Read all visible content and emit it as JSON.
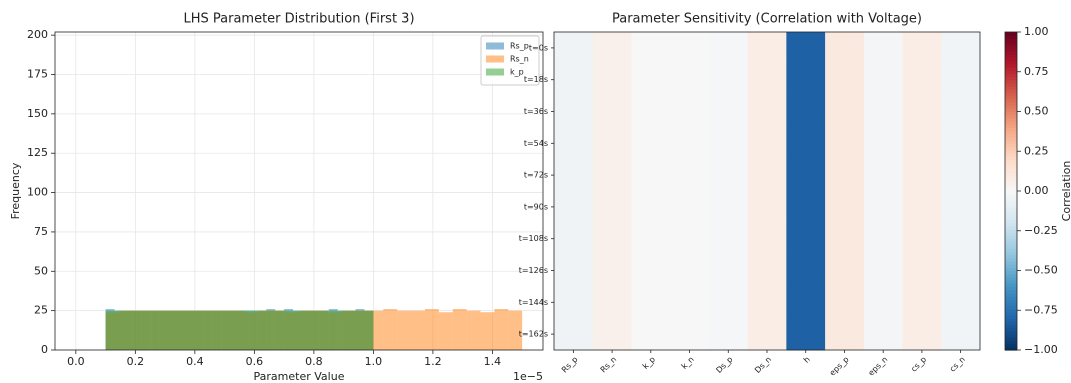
{
  "chart_data": [
    {
      "type": "hist",
      "title": "LHS Parameter Distribution (First 3)",
      "xlabel": "Parameter Value",
      "ylabel": "Frequency",
      "x_offset_label": "1e−5",
      "xlim": [
        -0.07,
        1.57
      ],
      "ylim": [
        0,
        202
      ],
      "xticks": [
        {
          "value": 0,
          "label": "0.0"
        },
        {
          "value": 0.2,
          "label": "0.2"
        },
        {
          "value": 0.4,
          "label": "0.4"
        },
        {
          "value": 0.6,
          "label": "0.6"
        },
        {
          "value": 0.8,
          "label": "0.8"
        },
        {
          "value": 1,
          "label": "1.0"
        },
        {
          "value": 1.2,
          "label": "1.2"
        },
        {
          "value": 1.4,
          "label": "1.4"
        }
      ],
      "yticks": [
        0,
        25,
        50,
        75,
        100,
        125,
        150,
        175,
        200
      ],
      "grid": true,
      "legend": "upper right",
      "alpha": 0.5,
      "series": [
        {
          "name": "Rs_p",
          "color": "#1f77b4",
          "bins": [
            0.1,
            0.13,
            0.16,
            0.19,
            0.22,
            0.25,
            0.28,
            0.31,
            0.34,
            0.37,
            0.4,
            0.43,
            0.46,
            0.49,
            0.52,
            0.55,
            0.58,
            0.61,
            0.64,
            0.67,
            0.7,
            0.73,
            0.76,
            0.79,
            0.82,
            0.85,
            0.88,
            0.91,
            0.94,
            0.97,
            1.0
          ],
          "values": [
            26,
            25,
            25,
            25,
            25,
            25,
            25,
            25,
            25,
            25,
            25,
            25,
            25,
            25,
            25,
            25,
            25,
            25,
            26,
            25,
            26,
            25,
            25,
            25,
            25,
            26,
            25,
            25,
            26,
            25
          ]
        },
        {
          "name": "Rs_n",
          "color": "#ff7f0e",
          "bins": [
            0.1,
            0.1467,
            0.1933,
            0.24,
            0.2867,
            0.3333,
            0.38,
            0.4267,
            0.4733,
            0.52,
            0.5667,
            0.6133,
            0.66,
            0.7067,
            0.7533,
            0.8,
            0.8467,
            0.8933,
            0.94,
            0.9867,
            1.0333,
            1.08,
            1.1267,
            1.1733,
            1.22,
            1.2667,
            1.3133,
            1.36,
            1.4067,
            1.4533,
            1.5
          ],
          "values": [
            24,
            25,
            25,
            25,
            25,
            25,
            25,
            25,
            25,
            25,
            24,
            25,
            25,
            24,
            25,
            25,
            24,
            25,
            25,
            25,
            26,
            25,
            25,
            26,
            24,
            26,
            25,
            24,
            26,
            25
          ]
        },
        {
          "name": "k_p",
          "color": "#2ca02c",
          "bins": [
            0.1,
            0.13,
            0.16,
            0.19,
            0.22,
            0.25,
            0.28,
            0.31,
            0.34,
            0.37,
            0.4,
            0.43,
            0.46,
            0.49,
            0.52,
            0.55,
            0.58,
            0.61,
            0.64,
            0.67,
            0.7,
            0.73,
            0.76,
            0.79,
            0.82,
            0.85,
            0.88,
            0.91,
            0.94,
            0.97,
            1.0
          ],
          "values": [
            25,
            25,
            25,
            25,
            25,
            25,
            25,
            25,
            25,
            25,
            25,
            25,
            25,
            25,
            25,
            25,
            25,
            25,
            25,
            25,
            25,
            25,
            25,
            25,
            25,
            25,
            25,
            25,
            25,
            25
          ]
        }
      ]
    },
    {
      "type": "heatmap",
      "title": "Parameter Sensitivity (Correlation with Voltage)",
      "colorbar_label": "Correlation",
      "cmap": "RdBu_r",
      "x_categories": [
        "Rs_p",
        "Rs_n",
        "k_p",
        "k_n",
        "Ds_p",
        "Ds_n",
        "h",
        "eps_p",
        "eps_n",
        "cs_p",
        "cs_n"
      ],
      "y_categories": [
        "t=0s",
        "t=18s",
        "t=36s",
        "t=54s",
        "t=72s",
        "t=90s",
        "t=108s",
        "t=126s",
        "t=144s",
        "t=162s"
      ],
      "zlim": [
        -1,
        1
      ],
      "zticks": [
        {
          "value": 1,
          "label": "1.00"
        },
        {
          "value": 0.75,
          "label": "0.75"
        },
        {
          "value": 0.5,
          "label": "0.50"
        },
        {
          "value": 0.25,
          "label": "0.25"
        },
        {
          "value": 0,
          "label": "0.00"
        },
        {
          "value": -0.25,
          "label": "−0.25"
        },
        {
          "value": -0.5,
          "label": "−0.50"
        },
        {
          "value": -0.75,
          "label": "−0.75"
        },
        {
          "value": -1,
          "label": "−1.00"
        }
      ],
      "values": [
        [
          -0.04,
          0.05,
          0.0,
          0.0,
          -0.01,
          0.07,
          -0.82,
          0.1,
          -0.02,
          0.07,
          -0.03
        ],
        [
          -0.04,
          0.05,
          0.0,
          0.0,
          -0.01,
          0.07,
          -0.82,
          0.1,
          -0.02,
          0.07,
          -0.03
        ],
        [
          -0.04,
          0.05,
          0.0,
          0.0,
          -0.01,
          0.07,
          -0.82,
          0.1,
          -0.02,
          0.07,
          -0.03
        ],
        [
          -0.04,
          0.05,
          0.0,
          0.0,
          -0.01,
          0.07,
          -0.82,
          0.1,
          -0.02,
          0.07,
          -0.03
        ],
        [
          -0.04,
          0.05,
          0.0,
          0.0,
          -0.01,
          0.07,
          -0.82,
          0.1,
          -0.02,
          0.07,
          -0.03
        ],
        [
          -0.04,
          0.05,
          0.0,
          0.0,
          -0.01,
          0.07,
          -0.82,
          0.1,
          -0.02,
          0.07,
          -0.03
        ],
        [
          -0.04,
          0.05,
          0.0,
          0.0,
          -0.01,
          0.07,
          -0.82,
          0.1,
          -0.02,
          0.07,
          -0.03
        ],
        [
          -0.04,
          0.05,
          0.0,
          0.0,
          -0.01,
          0.07,
          -0.82,
          0.1,
          -0.02,
          0.07,
          -0.03
        ],
        [
          -0.04,
          0.05,
          0.0,
          0.0,
          -0.01,
          0.07,
          -0.82,
          0.1,
          -0.02,
          0.07,
          -0.03
        ],
        [
          -0.04,
          0.05,
          0.0,
          0.0,
          -0.01,
          0.07,
          -0.82,
          0.1,
          -0.02,
          0.07,
          -0.03
        ]
      ]
    }
  ]
}
